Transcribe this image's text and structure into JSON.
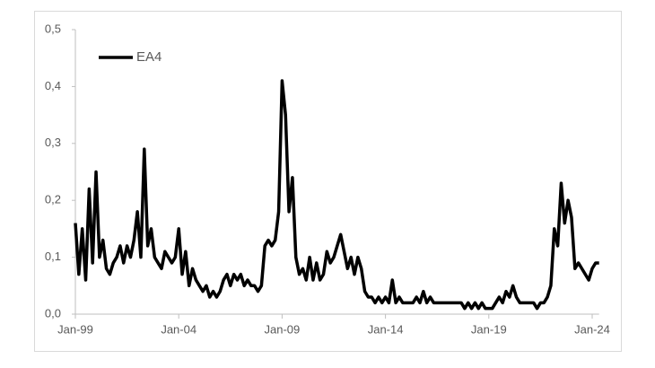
{
  "chart_data": {
    "type": "line",
    "categories": [
      "Jan-99",
      null,
      null,
      null,
      null,
      null,
      null,
      null,
      null,
      null,
      null,
      null,
      null,
      null,
      null,
      null,
      null,
      null,
      null,
      null,
      null,
      null,
      null,
      null,
      null,
      null,
      null,
      null,
      null,
      null,
      "Jan-04",
      null,
      null,
      null,
      null,
      null,
      null,
      null,
      null,
      null,
      null,
      null,
      null,
      null,
      null,
      null,
      null,
      null,
      null,
      null,
      null,
      null,
      null,
      null,
      null,
      null,
      null,
      null,
      null,
      null,
      "Jan-09",
      null,
      null,
      null,
      null,
      null,
      null,
      null,
      null,
      null,
      null,
      null,
      null,
      null,
      null,
      null,
      null,
      null,
      null,
      null,
      null,
      null,
      null,
      null,
      null,
      null,
      null,
      null,
      null,
      null,
      "Jan-14",
      null,
      null,
      null,
      null,
      null,
      null,
      null,
      null,
      null,
      null,
      null,
      null,
      null,
      null,
      null,
      null,
      null,
      null,
      null,
      null,
      null,
      null,
      null,
      null,
      null,
      null,
      null,
      null,
      null,
      "Jan-19",
      null,
      null,
      null,
      null,
      null,
      null,
      null,
      null,
      null,
      null,
      null,
      null,
      null,
      null,
      null,
      null,
      null,
      null,
      null,
      null,
      null,
      null,
      null,
      null,
      null,
      null,
      null,
      null,
      null,
      "Jan-24",
      null,
      null
    ],
    "series": [
      {
        "name": "EA4",
        "color": "#000000",
        "values": [
          0.16,
          0.07,
          0.15,
          0.06,
          0.22,
          0.09,
          0.25,
          0.1,
          0.13,
          0.08,
          0.07,
          0.09,
          0.1,
          0.12,
          0.09,
          0.12,
          0.1,
          0.13,
          0.18,
          0.1,
          0.29,
          0.12,
          0.15,
          0.1,
          0.09,
          0.08,
          0.11,
          0.1,
          0.09,
          0.1,
          0.15,
          0.07,
          0.11,
          0.05,
          0.08,
          0.06,
          0.05,
          0.04,
          0.05,
          0.03,
          0.04,
          0.03,
          0.04,
          0.06,
          0.07,
          0.05,
          0.07,
          0.06,
          0.07,
          0.05,
          0.06,
          0.05,
          0.05,
          0.04,
          0.05,
          0.12,
          0.13,
          0.12,
          0.13,
          0.18,
          0.41,
          0.35,
          0.18,
          0.24,
          0.1,
          0.07,
          0.08,
          0.06,
          0.1,
          0.06,
          0.09,
          0.06,
          0.07,
          0.11,
          0.09,
          0.1,
          0.12,
          0.14,
          0.11,
          0.08,
          0.1,
          0.07,
          0.1,
          0.08,
          0.04,
          0.03,
          0.03,
          0.02,
          0.03,
          0.02,
          0.03,
          0.02,
          0.06,
          0.02,
          0.03,
          0.02,
          0.02,
          0.02,
          0.02,
          0.03,
          0.02,
          0.04,
          0.02,
          0.03,
          0.02,
          0.02,
          0.02,
          0.02,
          0.02,
          0.02,
          0.02,
          0.02,
          0.02,
          0.01,
          0.02,
          0.01,
          0.02,
          0.01,
          0.02,
          0.01,
          0.01,
          0.01,
          0.02,
          0.03,
          0.02,
          0.04,
          0.03,
          0.05,
          0.03,
          0.02,
          0.02,
          0.02,
          0.02,
          0.02,
          0.01,
          0.02,
          0.02,
          0.03,
          0.05,
          0.15,
          0.12,
          0.23,
          0.16,
          0.2,
          0.17,
          0.08,
          0.09,
          0.08,
          0.07,
          0.06,
          0.08,
          0.09,
          0.09
        ]
      }
    ],
    "ylim": [
      0,
      0.5
    ],
    "yticks": [
      {
        "value": 0,
        "label": "0,0"
      },
      {
        "value": 0.1,
        "label": "0,1"
      },
      {
        "value": 0.2,
        "label": "0,2"
      },
      {
        "value": 0.3,
        "label": "0,3"
      },
      {
        "value": 0.4,
        "label": "0,4"
      },
      {
        "value": 0.5,
        "label": "0,5"
      }
    ],
    "legend": "upper left",
    "grid": false
  }
}
